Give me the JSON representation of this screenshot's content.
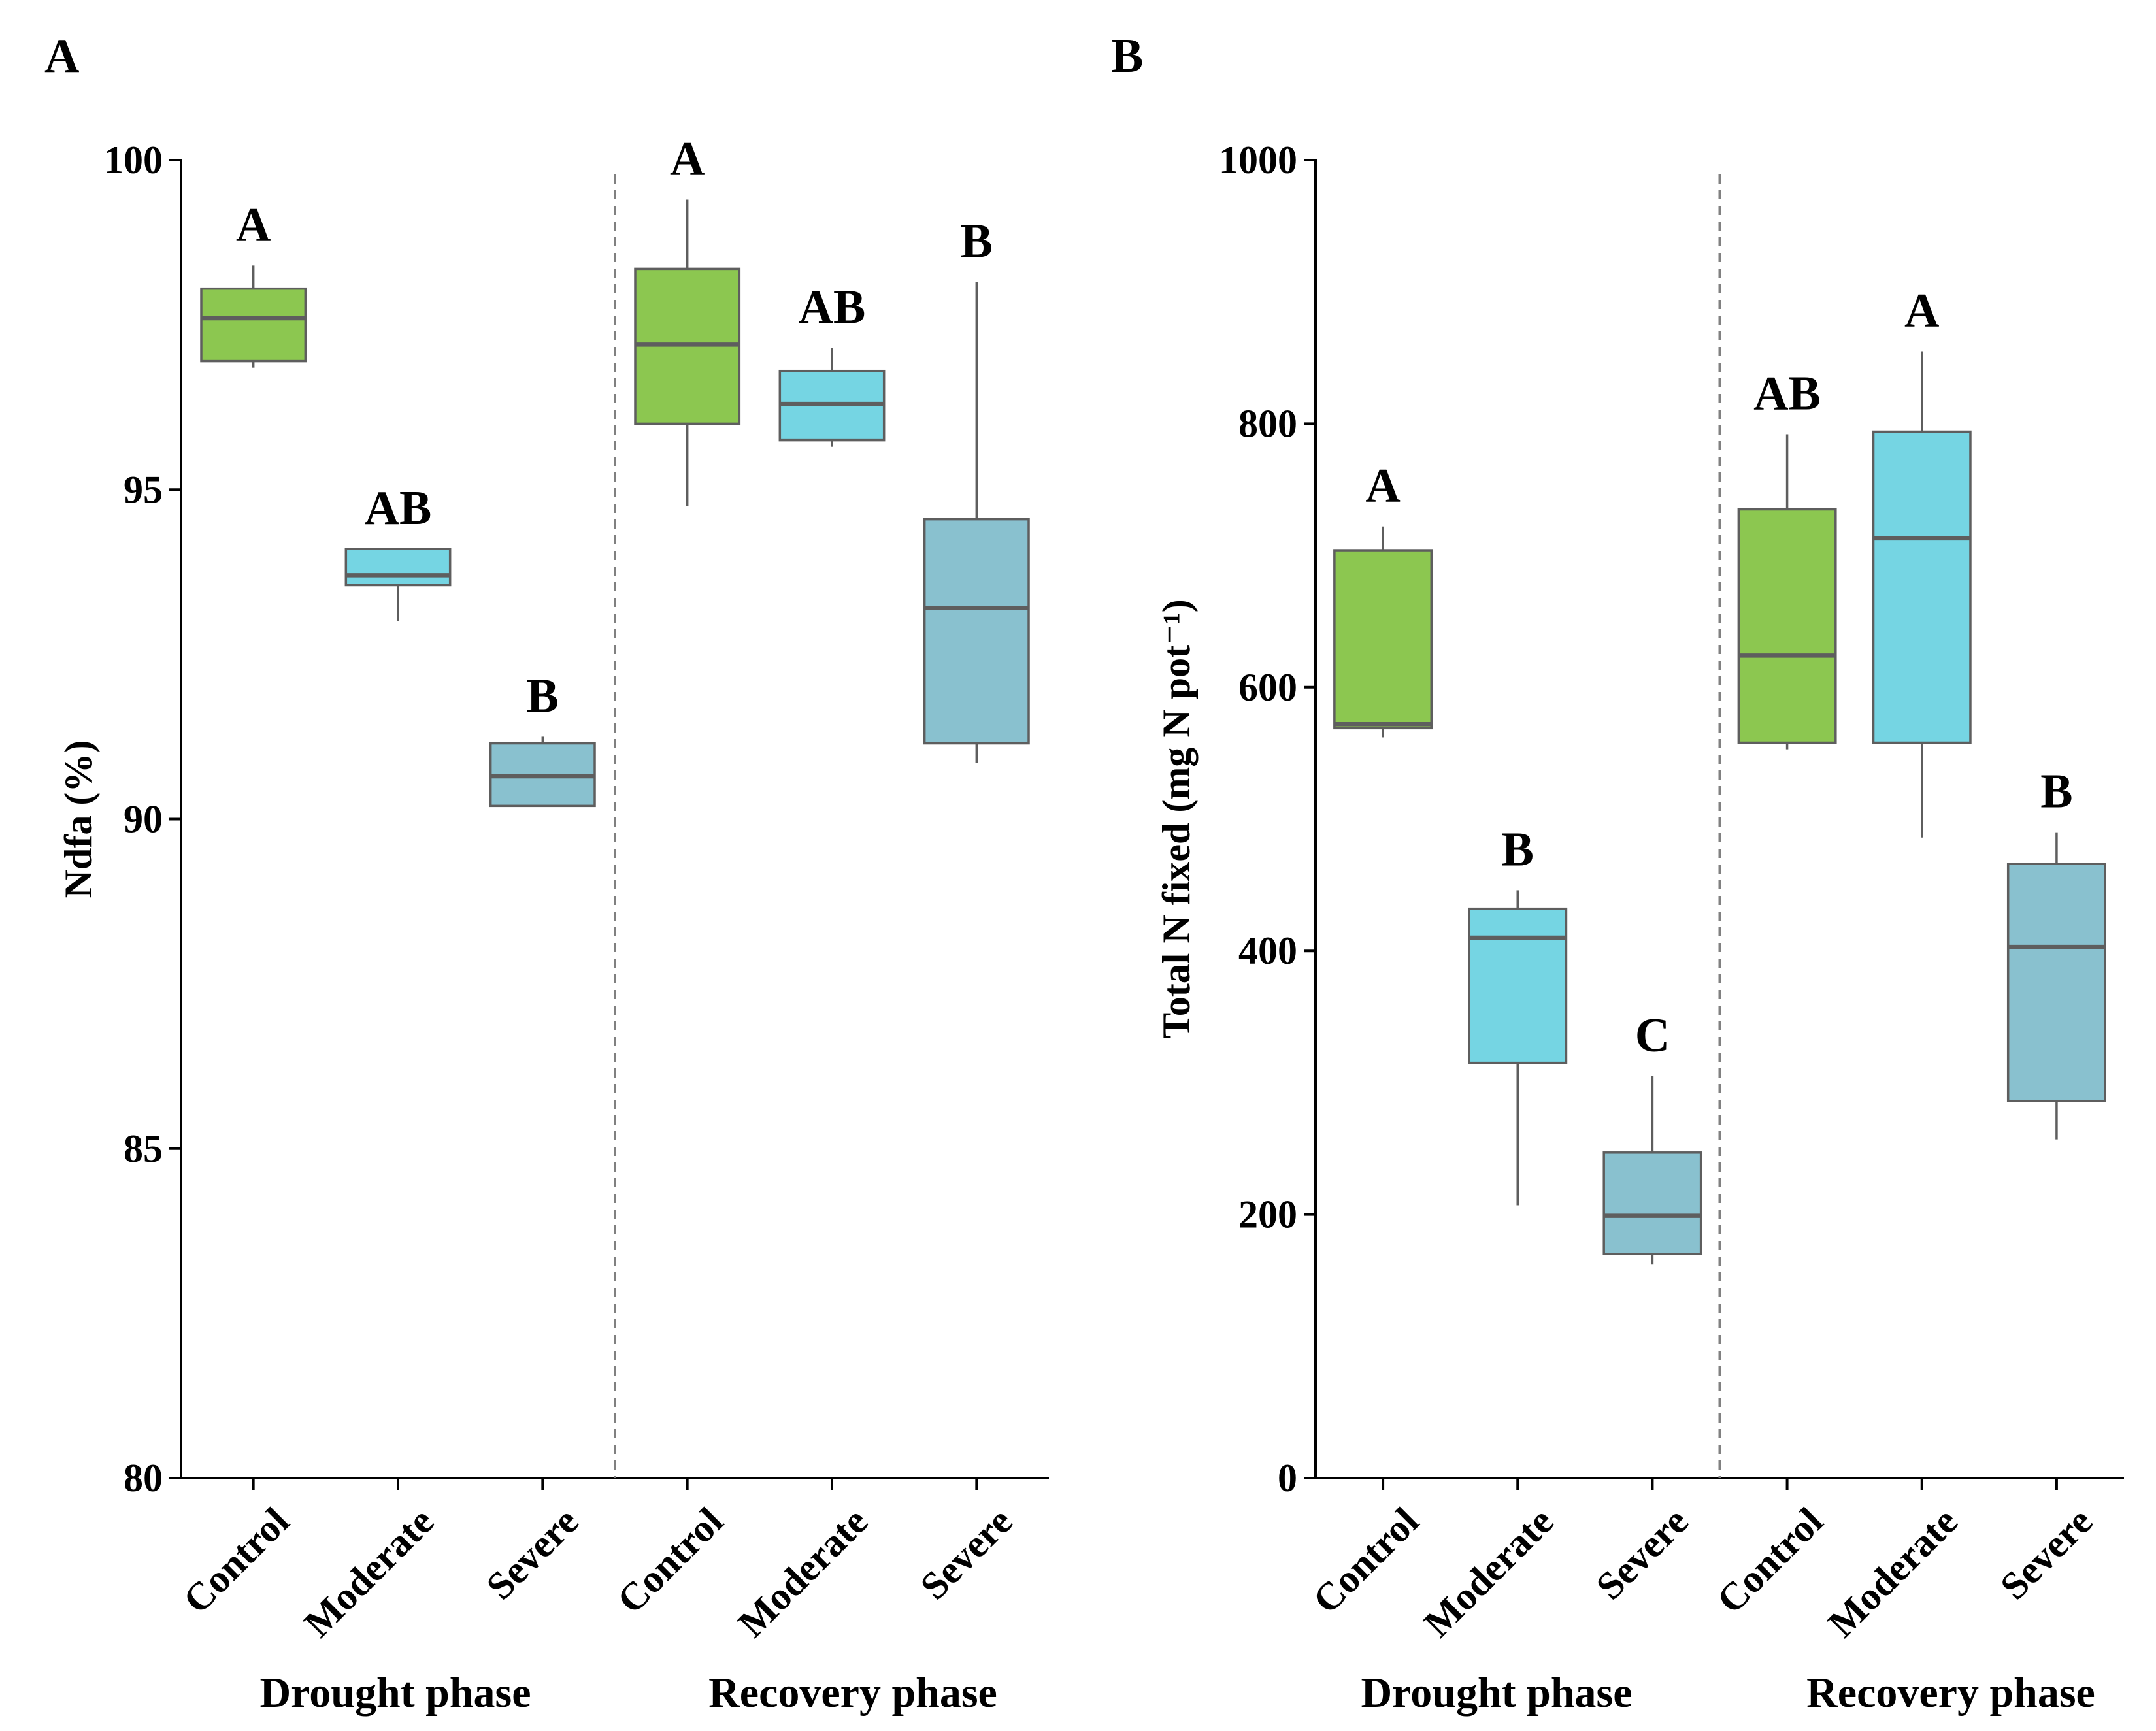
{
  "colors": {
    "Control": "#8cc750",
    "Moderate": "#75d5e3",
    "Severe": "#89c1cf"
  },
  "chart_data": [
    {
      "type": "box",
      "panel_label": "A",
      "ylabel": "Ndfa (%)",
      "ylim": [
        80,
        100
      ],
      "yticks": [
        "80",
        "85",
        "90",
        "95",
        "100"
      ],
      "phases": [
        "Drought phase",
        "Recovery phase"
      ],
      "categories": [
        "Control",
        "Moderate",
        "Severe",
        "Control",
        "Moderate",
        "Severe"
      ],
      "boxes": [
        {
          "group": "Control",
          "phase": "Drought phase",
          "min": 96.85,
          "q1": 96.95,
          "median": 97.6,
          "q3": 98.05,
          "max": 98.4,
          "letter": "A"
        },
        {
          "group": "Moderate",
          "phase": "Drought phase",
          "min": 93.0,
          "q1": 93.55,
          "median": 93.7,
          "q3": 94.1,
          "max": 94.1,
          "letter": "AB"
        },
        {
          "group": "Severe",
          "phase": "Drought phase",
          "min": 90.2,
          "q1": 90.2,
          "median": 90.65,
          "q3": 91.15,
          "max": 91.25,
          "letter": "B"
        },
        {
          "group": "Control",
          "phase": "Recovery phase",
          "min": 94.75,
          "q1": 96.0,
          "median": 97.2,
          "q3": 98.35,
          "max": 99.4,
          "letter": "A"
        },
        {
          "group": "Moderate",
          "phase": "Recovery phase",
          "min": 95.65,
          "q1": 95.75,
          "median": 96.3,
          "q3": 96.8,
          "max": 97.15,
          "letter": "AB"
        },
        {
          "group": "Severe",
          "phase": "Recovery phase",
          "min": 90.85,
          "q1": 91.15,
          "median": 93.2,
          "q3": 94.55,
          "max": 98.15,
          "letter": "B"
        }
      ]
    },
    {
      "type": "box",
      "panel_label": "B",
      "ylabel": "Total N fixed (mg N pot⁻¹)",
      "ylim": [
        0,
        1000
      ],
      "yticks": [
        "0",
        "200",
        "400",
        "600",
        "800",
        "1000"
      ],
      "phases": [
        "Drought phase",
        "Recovery phase"
      ],
      "categories": [
        "Control",
        "Moderate",
        "Severe",
        "Control",
        "Moderate",
        "Severe"
      ],
      "boxes": [
        {
          "group": "Control",
          "phase": "Drought phase",
          "min": 562,
          "q1": 569,
          "median": 572,
          "q3": 704,
          "max": 722,
          "letter": "A"
        },
        {
          "group": "Moderate",
          "phase": "Drought phase",
          "min": 207,
          "q1": 315,
          "median": 410,
          "q3": 432,
          "max": 446,
          "letter": "B"
        },
        {
          "group": "Severe",
          "phase": "Drought phase",
          "min": 162,
          "q1": 170,
          "median": 199,
          "q3": 247,
          "max": 305,
          "letter": "C"
        },
        {
          "group": "Control",
          "phase": "Recovery phase",
          "min": 553,
          "q1": 558,
          "median": 624,
          "q3": 735,
          "max": 792,
          "letter": "AB"
        },
        {
          "group": "Moderate",
          "phase": "Recovery phase",
          "min": 486,
          "q1": 558,
          "median": 713,
          "q3": 794,
          "max": 855,
          "letter": "A"
        },
        {
          "group": "Severe",
          "phase": "Recovery phase",
          "min": 257,
          "q1": 286,
          "median": 403,
          "q3": 466,
          "max": 490,
          "letter": "B"
        }
      ]
    }
  ]
}
